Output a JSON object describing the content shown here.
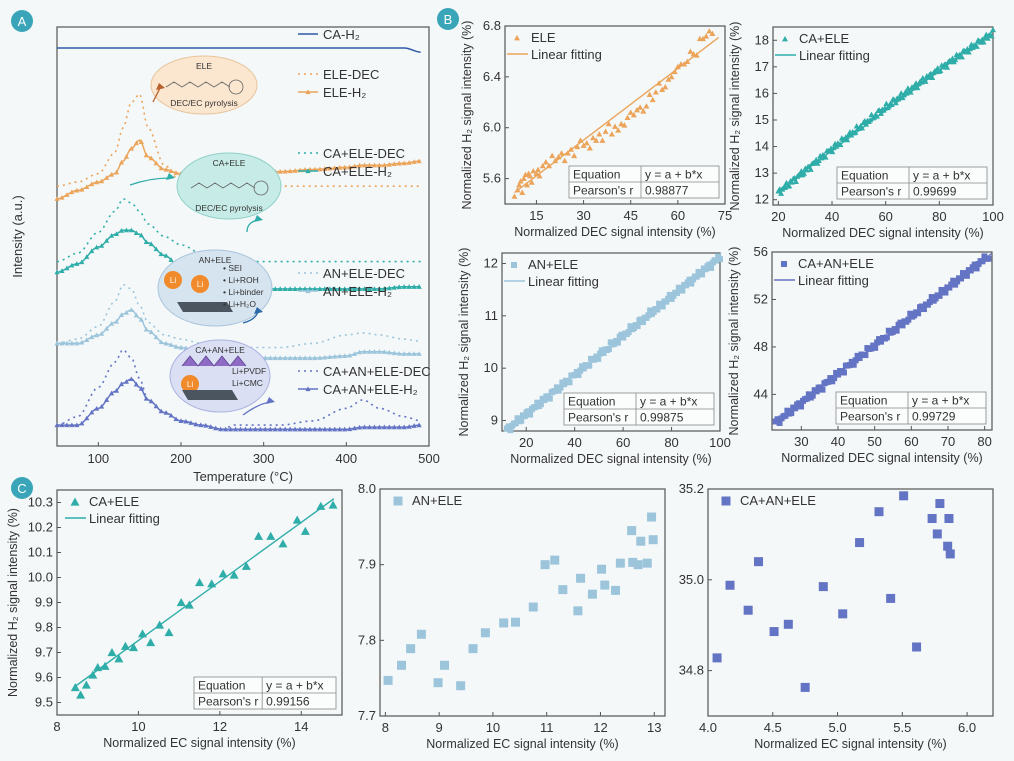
{
  "colors": {
    "badge": "#3aa5b8",
    "ca_h2": "#2e5aa8",
    "ele": "#eba45a",
    "ca_ele": "#2fada9",
    "an_ele": "#9cc5dc",
    "ca_an_ele": "#6474c4",
    "axis": "#555555",
    "bg": "#f4f8f9"
  },
  "badges": {
    "a": "A",
    "b": "B",
    "c": "C"
  },
  "chart_data": [
    {
      "id": "A",
      "type": "line",
      "title": "",
      "xlabel": "Temperature (°C)",
      "ylabel": "Intensity (a.u.)",
      "xlim": [
        50,
        500
      ],
      "xticks": [
        "100",
        "200",
        "300",
        "400",
        "500"
      ],
      "xtick_values": [
        100,
        200,
        300,
        400,
        500
      ],
      "grid": false,
      "x": [
        50,
        75,
        100,
        120,
        130,
        140,
        150,
        160,
        180,
        200,
        225,
        250,
        265,
        275,
        290,
        320,
        360,
        400,
        420,
        440,
        470,
        490
      ],
      "series": [
        {
          "name": "CA-H2",
          "label": "CA-H₂",
          "style": "solid",
          "offset": 0.95,
          "values": [
            0,
            0,
            0,
            0,
            0,
            0,
            0,
            0,
            0,
            0,
            0,
            0,
            0,
            0,
            0,
            0,
            0,
            0,
            0,
            0,
            0,
            -0.01
          ]
        },
        {
          "name": "ELE-DEC",
          "label": "ELE-DEC",
          "style": "dotted",
          "offset": 0.62,
          "values": [
            0,
            0.01,
            0.03,
            0.08,
            0.14,
            0.2,
            0.22,
            0.14,
            0.05,
            0.01,
            0,
            0,
            0,
            0,
            0,
            0,
            0,
            0,
            0,
            0,
            0,
            0
          ]
        },
        {
          "name": "ELE-H2",
          "label": "ELE-H₂",
          "style": "marker",
          "offset": 0.59,
          "values": [
            0,
            0.02,
            0.04,
            0.06,
            0.09,
            0.12,
            0.14,
            0.1,
            0.07,
            0.06,
            0.05,
            0.04,
            0.03,
            0.05,
            0.06,
            0.065,
            0.07,
            0.075,
            0.08,
            0.08,
            0.085,
            0.09
          ]
        },
        {
          "name": "CA+ELE-DEC",
          "label": "CA+ELE-DEC",
          "style": "dotted",
          "offset": 0.44,
          "values": [
            0,
            0.02,
            0.07,
            0.12,
            0.15,
            0.14,
            0.12,
            0.09,
            0.06,
            0.04,
            0.02,
            0,
            0,
            0,
            0,
            0,
            0,
            0,
            0,
            0,
            0,
            0
          ]
        },
        {
          "name": "CA+ELE-H2",
          "label": "CA+ELE-H₂",
          "style": "marker",
          "offset": 0.415,
          "values": [
            0,
            0.02,
            0.06,
            0.09,
            0.1,
            0.1,
            0.09,
            0.07,
            0.04,
            0.01,
            -0.01,
            -0.02,
            0.0,
            -0.03,
            -0.04,
            -0.04,
            -0.04,
            -0.04,
            -0.04,
            -0.04,
            -0.035,
            -0.035
          ]
        },
        {
          "name": "AN+ELE-DEC",
          "label": "AN+ELE-DEC",
          "style": "dotted",
          "offset": 0.245,
          "values": [
            0,
            0.01,
            0.04,
            0.1,
            0.14,
            0.13,
            0.09,
            0.05,
            0.02,
            0.01,
            0,
            -0.01,
            -0.01,
            -0.01,
            -0.01,
            -0.01,
            0,
            0.02,
            0.025,
            0.02,
            0.01,
            0.005
          ]
        },
        {
          "name": "AN+ELE-H2",
          "label": "AN+ELE-H₂",
          "style": "marker",
          "offset": 0.245,
          "values": [
            0,
            0,
            0.02,
            0.05,
            0.07,
            0.08,
            0.06,
            0.03,
            0,
            -0.01,
            -0.02,
            -0.03,
            -0.02,
            -0.03,
            -0.035,
            -0.035,
            -0.035,
            -0.03,
            -0.02,
            -0.02,
            -0.025,
            -0.025
          ]
        },
        {
          "name": "CA+AN+ELE-DEC",
          "label": "CA+AN+ELE-DEC",
          "style": "dotted",
          "offset": 0.05,
          "values": [
            0,
            0.02,
            0.09,
            0.15,
            0.18,
            0.16,
            0.11,
            0.06,
            0.03,
            0.01,
            0,
            -0.01,
            0,
            0,
            0,
            0,
            0.01,
            0.04,
            0.06,
            0.04,
            0.02,
            0.01
          ]
        },
        {
          "name": "CA+AN+ELE-H2",
          "label": "CA+AN+ELE-H₂",
          "style": "marker",
          "offset": 0.05,
          "values": [
            0,
            0,
            0.04,
            0.08,
            0.1,
            0.11,
            0.09,
            0.06,
            0.03,
            0.01,
            0,
            -0.01,
            -0.01,
            -0.01,
            -0.01,
            -0.01,
            -0.01,
            -0.01,
            -0.005,
            -0.005,
            -0.005,
            0
          ]
        }
      ],
      "annotations": [
        {
          "title": "ELE",
          "lines": [
            "DEC/EC pyrolysis"
          ]
        },
        {
          "title": "CA+ELE",
          "lines": [
            "DEC/EC pyrolysis"
          ]
        },
        {
          "title": "AN+ELE",
          "lines": [
            "• SEI",
            "• Li+ROH",
            "• Li+binder",
            "• Li+H₂O"
          ],
          "icons": [
            "Li",
            "Li"
          ]
        },
        {
          "title": "CA+AN+ELE",
          "lines": [
            "Li+PVDF",
            "Li+CMC"
          ],
          "icons": [
            "Li"
          ]
        }
      ]
    },
    {
      "id": "B1",
      "type": "scatter",
      "legend": [
        "ELE",
        "Linear fitting"
      ],
      "marker": "triangle",
      "xlabel": "Normalized DEC signal intensity (%)",
      "ylabel": "Normalized H₂ signal intensity (%)",
      "xlim": [
        5,
        75
      ],
      "ylim": [
        5.4,
        6.8
      ],
      "xticks": [
        15,
        30,
        45,
        60,
        75
      ],
      "yticks": [
        5.6,
        6.0,
        6.4,
        6.8
      ],
      "ytick_labels": [
        "5.6",
        "6.0",
        "6.4",
        "6.8"
      ],
      "fit": {
        "x": [
          8,
          73
        ],
        "y": [
          5.49,
          6.71
        ]
      },
      "table": {
        "equation_label": "Equation",
        "equation": "y = a + b*x",
        "r_label": "Pearson's r",
        "r": "0.98877"
      },
      "points_x": [
        8,
        9,
        9.5,
        10,
        10.5,
        11,
        11.5,
        12,
        12.5,
        13,
        13.5,
        14,
        15,
        15.5,
        16,
        17,
        18,
        19,
        20,
        21,
        22,
        23,
        24,
        25,
        26,
        27,
        28,
        29,
        30,
        31,
        32,
        33,
        34,
        35,
        36,
        37,
        38,
        39,
        40,
        41,
        42,
        43,
        44,
        45,
        46,
        47,
        48,
        49,
        50,
        51,
        52,
        53,
        54,
        55,
        56,
        57,
        58,
        59,
        60,
        61,
        62,
        63,
        64,
        65,
        66,
        67,
        68,
        69,
        70,
        71
      ],
      "points_y": [
        5.46,
        5.51,
        5.55,
        5.58,
        5.49,
        5.6,
        5.63,
        5.55,
        5.64,
        5.62,
        5.57,
        5.66,
        5.64,
        5.67,
        5.62,
        5.7,
        5.73,
        5.7,
        5.78,
        5.74,
        5.77,
        5.8,
        5.74,
        5.8,
        5.83,
        5.78,
        5.85,
        5.9,
        5.86,
        5.88,
        5.84,
        5.92,
        5.9,
        5.95,
        5.9,
        5.97,
        6.03,
        5.95,
        6.01,
        5.98,
        6.03,
        6.02,
        6.08,
        6.12,
        6.1,
        6.14,
        6.16,
        6.13,
        6.17,
        6.26,
        6.22,
        6.28,
        6.35,
        6.3,
        6.32,
        6.38,
        6.4,
        6.44,
        6.48,
        6.5,
        6.5,
        6.52,
        6.6,
        6.58,
        6.57,
        6.7,
        6.7,
        6.72,
        6.76,
        6.74
      ]
    },
    {
      "id": "B2",
      "type": "scatter",
      "legend": [
        "CA+ELE",
        "Linear fitting"
      ],
      "marker": "triangle",
      "xlabel": "Normalized DEC signal intensity (%)",
      "ylabel": "Normalized H₂ signal intensity (%)",
      "xlim": [
        18,
        100
      ],
      "ylim": [
        11.8,
        18.5
      ],
      "xticks": [
        20,
        40,
        60,
        80,
        100
      ],
      "yticks": [
        12,
        13,
        14,
        15,
        16,
        17,
        18
      ],
      "ytick_labels": [
        "12",
        "13",
        "14",
        "15",
        "16",
        "17",
        "18"
      ],
      "fit": {
        "x": [
          20,
          100
        ],
        "y": [
          12.35,
          18.35
        ]
      },
      "table": {
        "equation_label": "Equation",
        "equation": "y = a + b*x",
        "r_label": "Pearson's r",
        "r": "0.99699"
      },
      "dense": {
        "x0": 20,
        "x1": 100,
        "n": 160,
        "a": 12.2,
        "curve": "ca_ele"
      }
    },
    {
      "id": "B3",
      "type": "scatter",
      "legend": [
        "AN+ELE",
        "Linear fitting"
      ],
      "marker": "square",
      "xlabel": "Normalized DEC signal intensity (%)",
      "ylabel": "Normalized H₂ signal intensity (%)",
      "xlim": [
        10,
        100
      ],
      "ylim": [
        8.8,
        12.2
      ],
      "xticks": [
        20,
        40,
        60,
        80,
        100
      ],
      "yticks": [
        9,
        10,
        11,
        12
      ],
      "ytick_labels": [
        "9",
        "10",
        "11",
        "12"
      ],
      "fit": {
        "x": [
          12,
          100
        ],
        "y": [
          8.82,
          12.12
        ]
      },
      "table": {
        "equation_label": "Equation",
        "equation": "y = a + b*x",
        "r_label": "Pearson's r",
        "r": "0.99875"
      },
      "dense": {
        "x0": 12,
        "x1": 100,
        "n": 120,
        "curve": "an_ele"
      }
    },
    {
      "id": "B4",
      "type": "scatter",
      "legend": [
        "CA+AN+ELE",
        "Linear fitting"
      ],
      "marker": "square",
      "xlabel": "Normalized DEC signal intensity (%)",
      "ylabel": "Normalized H₂ signal intensity (%)",
      "xlim": [
        22,
        82
      ],
      "ylim": [
        41,
        56
      ],
      "xticks": [
        30,
        40,
        50,
        60,
        70,
        80
      ],
      "yticks": [
        44,
        48,
        52,
        56
      ],
      "ytick_labels": [
        "44",
        "48",
        "52",
        "56"
      ],
      "fit": {
        "x": [
          23,
          82
        ],
        "y": [
          41.6,
          55.9
        ]
      },
      "table": {
        "equation_label": "Equation",
        "equation": "y = a + b*x",
        "r_label": "Pearson's r",
        "r": "0.99729"
      },
      "dense": {
        "x0": 23,
        "x1": 81,
        "n": 110,
        "curve": "ca_an_ele"
      }
    },
    {
      "id": "C1",
      "type": "scatter",
      "legend": [
        "CA+ELE",
        "Linear fitting"
      ],
      "marker": "triangle",
      "xlabel": "Normalized EC signal intensity (%)",
      "ylabel": "Normalized H₂ signal intensity (%)",
      "xlim": [
        8,
        15
      ],
      "ylim": [
        9.45,
        10.35
      ],
      "xticks": [
        8,
        10,
        12,
        14
      ],
      "yticks": [
        9.5,
        9.6,
        9.7,
        9.8,
        9.9,
        10.0,
        10.1,
        10.2,
        10.3
      ],
      "ytick_labels": [
        "9.5",
        "9.6",
        "9.7",
        "9.8",
        "9.9",
        "10.0",
        "10.1",
        "10.2",
        "10.3"
      ],
      "fit": {
        "x": [
          8.45,
          14.8
        ],
        "y": [
          9.565,
          10.315
        ]
      },
      "table": {
        "equation_label": "Equation",
        "equation": "y = a + b*x",
        "r_label": "Pearson's r",
        "r": "0.99156"
      },
      "points_x": [
        8.45,
        8.58,
        8.72,
        8.88,
        9.0,
        9.18,
        9.35,
        9.52,
        9.68,
        9.88,
        10.1,
        10.3,
        10.52,
        10.75,
        11.05,
        11.25,
        11.5,
        11.8,
        12.08,
        12.35,
        12.65,
        12.95,
        13.25,
        13.55,
        13.9,
        14.1,
        14.48,
        14.78
      ],
      "points_y": [
        9.56,
        9.53,
        9.57,
        9.61,
        9.64,
        9.645,
        9.7,
        9.675,
        9.725,
        9.72,
        9.775,
        9.74,
        9.81,
        9.78,
        9.9,
        9.89,
        9.98,
        9.975,
        10.015,
        10.01,
        10.045,
        10.165,
        10.165,
        10.135,
        10.23,
        10.185,
        10.285,
        10.29
      ]
    },
    {
      "id": "C2",
      "type": "scatter",
      "legend": [
        "AN+ELE"
      ],
      "marker": "square",
      "xlabel": "Normalized EC signal intensity (%)",
      "ylabel": "",
      "xlim": [
        7.9,
        13.2
      ],
      "ylim": [
        7.7,
        8.0
      ],
      "xticks": [
        8,
        9,
        10,
        11,
        12,
        13
      ],
      "yticks": [
        7.7,
        7.8,
        7.9,
        8.0
      ],
      "ytick_labels": [
        "7.7",
        "7.8",
        "7.9",
        "8.0"
      ],
      "points_x": [
        8.05,
        8.3,
        8.47,
        8.67,
        8.98,
        9.1,
        9.4,
        9.63,
        9.86,
        10.2,
        10.42,
        10.75,
        10.97,
        11.15,
        11.3,
        11.58,
        11.63,
        11.85,
        12.02,
        12.08,
        12.28,
        12.37,
        12.58,
        12.6,
        12.7,
        12.75,
        12.87,
        12.95,
        12.98
      ],
      "points_y": [
        7.747,
        7.767,
        7.789,
        7.808,
        7.744,
        7.767,
        7.74,
        7.789,
        7.81,
        7.823,
        7.824,
        7.844,
        7.9,
        7.906,
        7.867,
        7.839,
        7.882,
        7.861,
        7.894,
        7.873,
        7.866,
        7.902,
        7.945,
        7.903,
        7.9,
        7.931,
        7.902,
        7.963,
        7.933
      ]
    },
    {
      "id": "C3",
      "type": "scatter",
      "legend": [
        "CA+AN+ELE"
      ],
      "marker": "square",
      "xlabel": "Normalized EC signal intensity (%)",
      "ylabel": "",
      "xlim": [
        4.0,
        6.2
      ],
      "ylim": [
        34.7,
        35.2
      ],
      "xticks": [
        4.0,
        4.5,
        5.0,
        5.5,
        6.0
      ],
      "xtick_labels": [
        "4.0",
        "4.5",
        "5.0",
        "5.5",
        "6.0"
      ],
      "yticks": [
        34.8,
        35.0,
        35.2
      ],
      "ytick_labels": [
        "34.8",
        "35.0",
        "35.2"
      ],
      "points_x": [
        4.07,
        4.17,
        4.31,
        4.39,
        4.51,
        4.62,
        4.75,
        4.89,
        5.04,
        5.17,
        5.32,
        5.41,
        5.51,
        5.61,
        5.73,
        5.77,
        5.79,
        5.85,
        5.86,
        5.87
      ],
      "points_y": [
        34.828,
        34.988,
        34.933,
        35.04,
        34.886,
        34.902,
        34.763,
        34.985,
        34.925,
        35.082,
        35.15,
        34.959,
        35.185,
        34.852,
        35.135,
        35.101,
        35.168,
        35.074,
        35.135,
        35.057
      ]
    }
  ]
}
